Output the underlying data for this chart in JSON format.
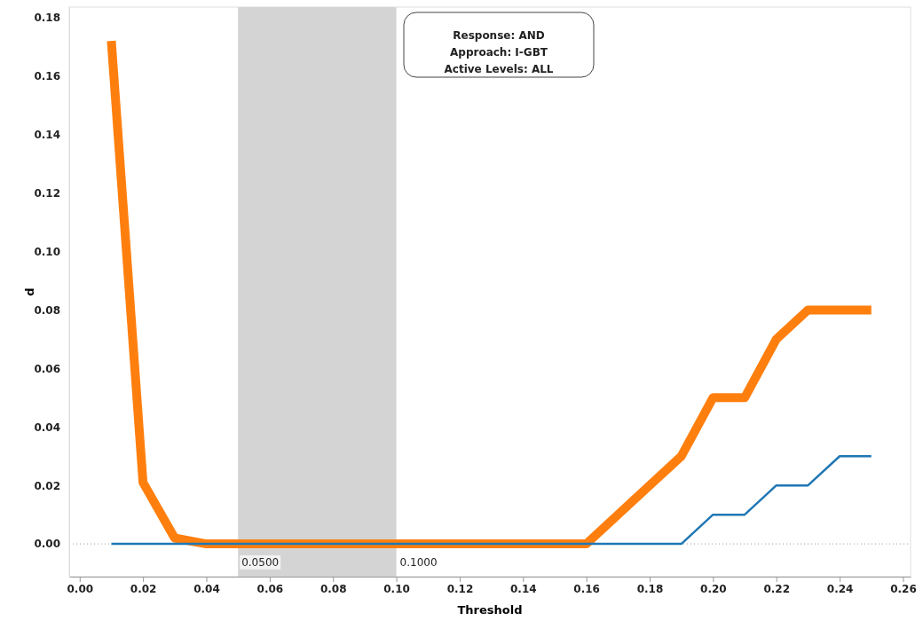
{
  "chart_data": {
    "type": "line",
    "xlabel": "Threshold",
    "ylabel": "d",
    "x": [
      0.01,
      0.02,
      0.03,
      0.04,
      0.05,
      0.06,
      0.07,
      0.08,
      0.09,
      0.1,
      0.11,
      0.12,
      0.13,
      0.14,
      0.15,
      0.16,
      0.17,
      0.18,
      0.19,
      0.2,
      0.21,
      0.22,
      0.23,
      0.24,
      0.25
    ],
    "series": [
      {
        "color": "#ff7f0e",
        "values": [
          0.172,
          0.021,
          0.002,
          0,
          0,
          0,
          0,
          0,
          0,
          0,
          0,
          0,
          0,
          0,
          0,
          0,
          0.01,
          0.02,
          0.03,
          0.05,
          0.05,
          0.07,
          0.08,
          0.08,
          0.08
        ]
      },
      {
        "color": "#1f77b4",
        "values": [
          0,
          0,
          0,
          0,
          0,
          0,
          0,
          0,
          0,
          0,
          0,
          0,
          0,
          0,
          0,
          0,
          0,
          0,
          0,
          0.01,
          0.01,
          0.02,
          0.02,
          0.03,
          0.03
        ]
      }
    ],
    "xlim": [
      -0.0033,
      0.2624
    ],
    "xticks": [
      {
        "value": 0,
        "label": "0.00"
      },
      {
        "value": 0.02,
        "label": "0.02"
      },
      {
        "value": 0.04,
        "label": "0.04"
      },
      {
        "value": 0.06,
        "label": "0.06"
      },
      {
        "value": 0.08,
        "label": "0.08"
      },
      {
        "value": 0.1,
        "label": "0.10"
      },
      {
        "value": 0.12,
        "label": "0.12"
      },
      {
        "value": 0.14,
        "label": "0.14"
      },
      {
        "value": 0.16,
        "label": "0.16"
      },
      {
        "value": 0.18,
        "label": "0.18"
      },
      {
        "value": 0.2,
        "label": "0.20"
      },
      {
        "value": 0.22,
        "label": "0.22"
      },
      {
        "value": 0.24,
        "label": "0.24"
      },
      {
        "value": 0.26,
        "label": "0.26"
      }
    ],
    "ylim": [
      -0.0112,
      0.1836
    ],
    "yticks": [
      {
        "value": 0,
        "label": "0.00"
      },
      {
        "value": 0.02,
        "label": "0.02"
      },
      {
        "value": 0.04,
        "label": "0.04"
      },
      {
        "value": 0.06,
        "label": "0.06"
      },
      {
        "value": 0.08,
        "label": "0.08"
      },
      {
        "value": 0.1,
        "label": "0.10"
      },
      {
        "value": 0.12,
        "label": "0.12"
      },
      {
        "value": 0.14,
        "label": "0.14"
      },
      {
        "value": 0.16,
        "label": "0.16"
      },
      {
        "value": 0.18,
        "label": "0.18"
      }
    ],
    "bands": [
      {
        "axis": "x",
        "from": 0.05,
        "to": 0.1,
        "color": "#d4d4d4"
      }
    ],
    "ref_lines": [
      {
        "axis": "y",
        "value": 0,
        "color": "#999999",
        "line_style": "dotted"
      }
    ],
    "annotations": [
      {
        "text": "0.0500",
        "x": 0.05,
        "y": -0.006
      },
      {
        "text": "0.1000",
        "x": 0.1,
        "y": -0.006
      },
      "Response: AND\nApproach: I-GBT\nActive Levels: ALL"
    ],
    "grid": false,
    "marker": "none",
    "line_style": "solid"
  }
}
